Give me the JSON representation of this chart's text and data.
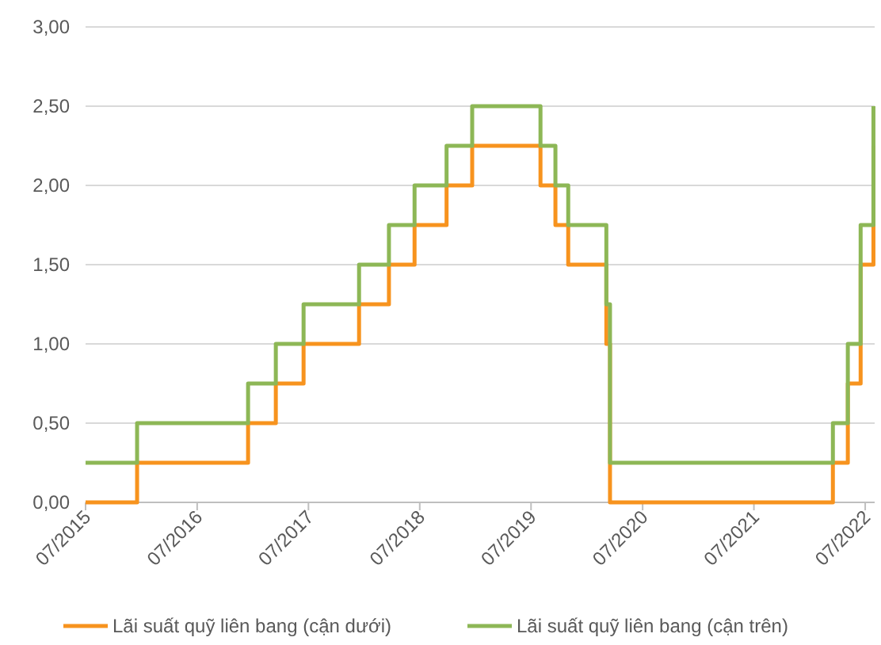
{
  "chart_data": {
    "type": "step",
    "xlim": [
      "2015-07-01",
      "2022-08-01"
    ],
    "ylim": [
      0,
      3
    ],
    "xticks": [
      {
        "value": "2015-07-01",
        "label": "07/2015"
      },
      {
        "value": "2016-07-01",
        "label": "07/2016"
      },
      {
        "value": "2017-07-01",
        "label": "07/2017"
      },
      {
        "value": "2018-07-01",
        "label": "07/2018"
      },
      {
        "value": "2019-07-01",
        "label": "07/2019"
      },
      {
        "value": "2020-07-01",
        "label": "07/2020"
      },
      {
        "value": "2021-07-01",
        "label": "07/2021"
      },
      {
        "value": "2022-07-01",
        "label": "07/2022"
      }
    ],
    "yticks": [
      {
        "value": 0,
        "label": "0,00"
      },
      {
        "value": 0.5,
        "label": "0,50"
      },
      {
        "value": 1,
        "label": "1,00"
      },
      {
        "value": 1.5,
        "label": "1,50"
      },
      {
        "value": 2,
        "label": "2,00"
      },
      {
        "value": 2.5,
        "label": "2,50"
      },
      {
        "value": 3,
        "label": "3,00"
      }
    ],
    "grid": "y",
    "legend": "bottom",
    "marker": "none",
    "line_style": "solid",
    "series": [
      {
        "name": "Lãi suất quỹ liên bang (cận dưới)",
        "color": "#f7931e",
        "x": [
          "2015-07-01",
          "2015-12-17",
          "2016-12-15",
          "2017-03-16",
          "2017-06-15",
          "2017-12-14",
          "2018-03-22",
          "2018-06-14",
          "2018-09-27",
          "2018-12-20",
          "2019-08-01",
          "2019-09-19",
          "2019-10-31",
          "2020-03-04",
          "2020-03-16",
          "2022-03-17",
          "2022-05-05",
          "2022-06-16",
          "2022-07-28"
        ],
        "values": [
          0,
          0.25,
          0.5,
          0.75,
          1,
          1.25,
          1.5,
          1.75,
          2,
          2.25,
          2,
          1.75,
          1.5,
          1,
          0,
          0.25,
          0.75,
          1.5,
          2.25
        ]
      },
      {
        "name": "Lãi suất quỹ liên bang (cận trên)",
        "color": "#8db756",
        "x": [
          "2015-07-01",
          "2015-12-17",
          "2016-12-15",
          "2017-03-16",
          "2017-06-15",
          "2017-12-14",
          "2018-03-22",
          "2018-06-14",
          "2018-09-27",
          "2018-12-20",
          "2019-08-01",
          "2019-09-19",
          "2019-10-31",
          "2020-03-04",
          "2020-03-16",
          "2022-03-17",
          "2022-05-05",
          "2022-06-16",
          "2022-07-28"
        ],
        "values": [
          0.25,
          0.5,
          0.75,
          1,
          1.25,
          1.5,
          1.75,
          2,
          2.25,
          2.5,
          2.25,
          2,
          1.75,
          1.25,
          0.25,
          0.5,
          1,
          1.75,
          2.5
        ]
      }
    ]
  }
}
